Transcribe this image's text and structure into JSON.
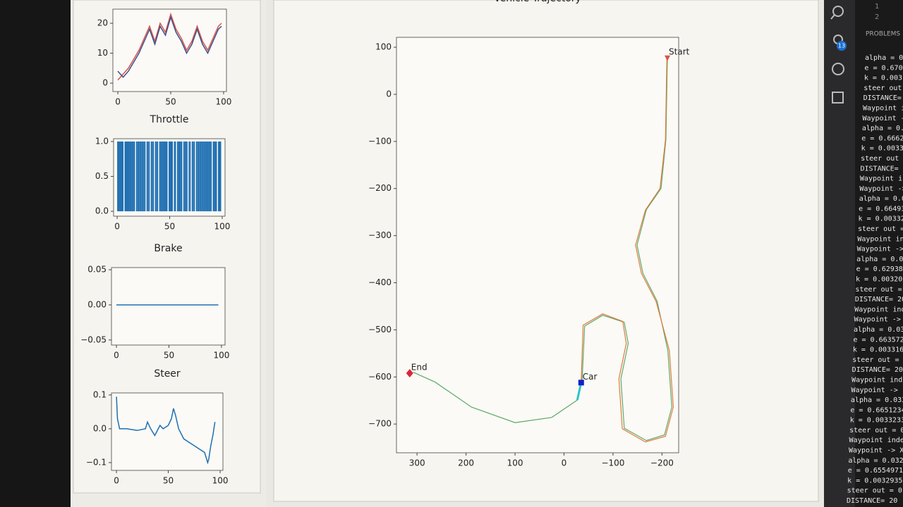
{
  "chart_data": [
    {
      "type": "line",
      "x": [
        0,
        5,
        10,
        15,
        20,
        25,
        30,
        35,
        40,
        45,
        50,
        55,
        60,
        65,
        70,
        75,
        80,
        85,
        90,
        95,
        98
      ],
      "series": [
        {
          "color": "#d9534a",
          "values": [
            1,
            3,
            5,
            8,
            11,
            15,
            19,
            14,
            20,
            17,
            23,
            18,
            15,
            11,
            14,
            19,
            14,
            11,
            15,
            19,
            20
          ]
        },
        {
          "color": "#3b4f8c",
          "values": [
            4,
            2,
            4,
            7,
            10,
            14,
            18,
            13,
            19,
            16,
            22,
            17,
            14,
            10,
            13,
            18,
            13,
            10,
            14,
            18,
            19
          ]
        }
      ],
      "xlim": [
        -4.7,
        102.7
      ],
      "ylim": [
        -2.8,
        24.7
      ],
      "xticks": [
        0,
        50,
        100
      ],
      "yticks": [
        0,
        10,
        20
      ]
    },
    {
      "type": "bar",
      "title": "Throttle",
      "color": "#1f6fb2",
      "x": [
        0,
        1,
        2,
        3,
        4,
        5,
        6,
        7,
        8,
        9,
        10,
        11,
        12,
        13,
        14,
        15,
        16,
        17,
        18,
        19,
        20,
        21,
        22,
        23,
        24,
        25,
        26,
        27,
        28,
        29,
        30,
        31,
        32,
        33,
        34,
        35,
        36,
        37,
        38,
        39,
        40,
        41,
        42,
        43,
        44,
        45,
        46,
        47,
        48,
        49,
        50,
        51,
        52,
        53,
        54,
        55,
        56,
        57,
        58,
        59,
        60,
        61,
        62,
        63,
        64,
        65,
        66,
        67,
        68,
        69,
        70,
        71,
        72,
        73,
        74,
        75,
        76,
        77,
        78,
        79,
        80,
        81,
        82,
        83,
        84,
        85,
        86,
        87,
        88,
        89,
        90,
        91,
        92,
        93,
        94,
        95,
        96,
        97,
        98,
        99
      ],
      "values": [
        1,
        1,
        1,
        1,
        1,
        1,
        0,
        1,
        1,
        1,
        1,
        1,
        1,
        1,
        1,
        1,
        1,
        0,
        1,
        1,
        1,
        1,
        1,
        1,
        1,
        1,
        1,
        0,
        1,
        1,
        1,
        0,
        1,
        1,
        1,
        0,
        1,
        1,
        1,
        0,
        1,
        1,
        1,
        1,
        1,
        1,
        1,
        1,
        0,
        1,
        1,
        1,
        1,
        0,
        1,
        1,
        0,
        1,
        1,
        1,
        1,
        1,
        0,
        1,
        1,
        1,
        1,
        0,
        1,
        1,
        0,
        1,
        1,
        1,
        0,
        1,
        1,
        1,
        1,
        1,
        1,
        1,
        1,
        1,
        1,
        1,
        1,
        1,
        1,
        1,
        0,
        1,
        1,
        1,
        1,
        0,
        1,
        1,
        1,
        0
      ],
      "xlim": [
        -3.4,
        102.7
      ],
      "ylim": [
        -0.07,
        1.04
      ],
      "xticks": [
        0,
        50,
        100
      ],
      "yticks": [
        {
          "value": 0,
          "label": "0.0"
        },
        {
          "value": 0.5,
          "label": "0.5"
        },
        {
          "value": 1,
          "label": "1.0"
        }
      ]
    },
    {
      "type": "line",
      "title": "Brake",
      "x": [
        0,
        10,
        20,
        30,
        40,
        50,
        60,
        70,
        80,
        90,
        97
      ],
      "series": [
        {
          "color": "#1f6fb2",
          "values": [
            0,
            0,
            0,
            0,
            0,
            0,
            0,
            0,
            0,
            0,
            0
          ]
        }
      ],
      "xlim": [
        -4.7,
        103.4
      ],
      "ylim": [
        -0.0572,
        0.0531
      ],
      "xticks": [
        0,
        50,
        100
      ],
      "yticks": [
        {
          "value": -0.05,
          "label": "−0.05"
        },
        {
          "value": 0,
          "label": "0.00"
        },
        {
          "value": 0.05,
          "label": "0.05"
        }
      ]
    },
    {
      "type": "line",
      "title": "Steer",
      "x": [
        0,
        1,
        3,
        10,
        20,
        28,
        30,
        33,
        37,
        42,
        45,
        50,
        53,
        55,
        57,
        60,
        65,
        70,
        75,
        80,
        85,
        88,
        89,
        91,
        93,
        95
      ],
      "series": [
        {
          "color": "#1f6fb2",
          "values": [
            0.095,
            0.03,
            0.0,
            0.0,
            -0.005,
            0.0,
            0.02,
            0.0,
            -0.02,
            0.01,
            0.0,
            0.01,
            0.03,
            0.06,
            0.04,
            0.0,
            -0.03,
            -0.04,
            -0.05,
            -0.06,
            -0.07,
            -0.1,
            -0.09,
            -0.05,
            -0.02,
            0.02
          ]
        }
      ],
      "xlim": [
        -4.8,
        102.7
      ],
      "ylim": [
        -0.123,
        0.106
      ],
      "xticks": [
        0,
        50,
        100
      ],
      "yticks": [
        {
          "value": -0.1,
          "label": "−0.1"
        },
        {
          "value": 0,
          "label": "0.0"
        },
        {
          "value": 0.1,
          "label": "0.1"
        }
      ]
    },
    {
      "type": "line",
      "title": "Vehicle Trajectory",
      "series": [
        {
          "color": "#5fa86a",
          "width": 1.2,
          "x": [
            -211,
            -208,
            -198,
            -168,
            -149,
            -161,
            -190,
            -212,
            -220,
            -205,
            -168,
            -123,
            -116,
            -131,
            -123,
            -79,
            -42,
            -37,
            -27,
            25,
            100,
            189,
            263,
            308
          ],
          "values": [
            76,
            -96,
            -200,
            -245,
            -320,
            -380,
            -439,
            -544,
            -664,
            -723,
            -735,
            -709,
            -604,
            -529,
            -484,
            -469,
            -492,
            -604,
            -649,
            -686,
            -697,
            -664,
            -611,
            -590
          ]
        },
        {
          "color": "#e07a3a",
          "width": 1.2,
          "x": [
            -210,
            -207,
            -196,
            -166,
            -146,
            -158,
            -188,
            -215,
            -223,
            -207,
            -166,
            -119,
            -112,
            -127,
            -120,
            -79,
            -39,
            -35
          ],
          "values": [
            78,
            -96,
            -200,
            -246,
            -320,
            -380,
            -440,
            -544,
            -664,
            -726,
            -738,
            -710,
            -604,
            -529,
            -482,
            -466,
            -490,
            -612
          ]
        },
        {
          "color": "#2ec4c4",
          "width": 3,
          "x": [
            -35,
            -27
          ],
          "values": [
            -612,
            -649
          ]
        }
      ],
      "annotations": [
        {
          "text": "Start",
          "x": -211,
          "y": 78,
          "marker": "triangle",
          "color": "#d9534a"
        },
        {
          "text": "End",
          "x": 315,
          "y": -592,
          "marker": "diamond",
          "color": "#d8283a"
        },
        {
          "text": "Car",
          "x": -35,
          "y": -612,
          "marker": "square",
          "color": "#1020c8"
        }
      ],
      "xlim": [
        342,
        -234
      ],
      "ylim": [
        -761,
        121
      ],
      "xticks": [
        300,
        200,
        100,
        0,
        {
          "value": -100,
          "label": "−100"
        },
        {
          "value": -200,
          "label": "−200"
        }
      ],
      "yticks": [
        {
          "value": -700,
          "label": "−700"
        },
        {
          "value": -600,
          "label": "−600"
        },
        {
          "value": -500,
          "label": "−500"
        },
        {
          "value": -400,
          "label": "−400"
        },
        {
          "value": -300,
          "label": "−300"
        },
        {
          "value": -200,
          "label": "−200"
        },
        {
          "value": -100,
          "label": "−100"
        },
        0,
        100
      ]
    }
  ],
  "editor": {
    "line_numbers": [
      "1",
      "2"
    ],
    "problems_tab": "PROBLEMS",
    "badge": "13",
    "console": [
      "alpha = 0",
      "e = 0.670",
      "k = 0.003",
      "steer out",
      "DISTANCE=",
      "Waypoint i",
      "Waypoint -",
      "alpha = 0.",
      "e = 0.6662",
      "k = 0.0033",
      "steer out",
      "DISTANCE=",
      "Waypoint in",
      "Waypoint ->",
      "alpha = 0.0",
      "e = 0.66493",
      "k = 0.00332",
      "steer out =",
      "Waypoint ind",
      "Waypoint ->",
      "alpha = 0.0",
      "e = 0.629380",
      "k = 0.003208",
      "steer out =",
      "DISTANCE= 20",
      "Waypoint ind",
      "Waypoint ->",
      "alpha = 0.03",
      "e = 0.663572",
      "k = 0.003316",
      "steer out =",
      "DISTANCE= 20",
      "Waypoint inde",
      "Waypoint ->",
      "alpha = 0.033",
      "e = 0.6651234",
      "k = 0.0033233",
      "steer out = 0",
      "Waypoint inde",
      "Waypoint -> X",
      "alpha = 0.032",
      "e = 0.6554971",
      "k = 0.0032935",
      "steer out = 0",
      "DISTANCE= 20"
    ]
  }
}
